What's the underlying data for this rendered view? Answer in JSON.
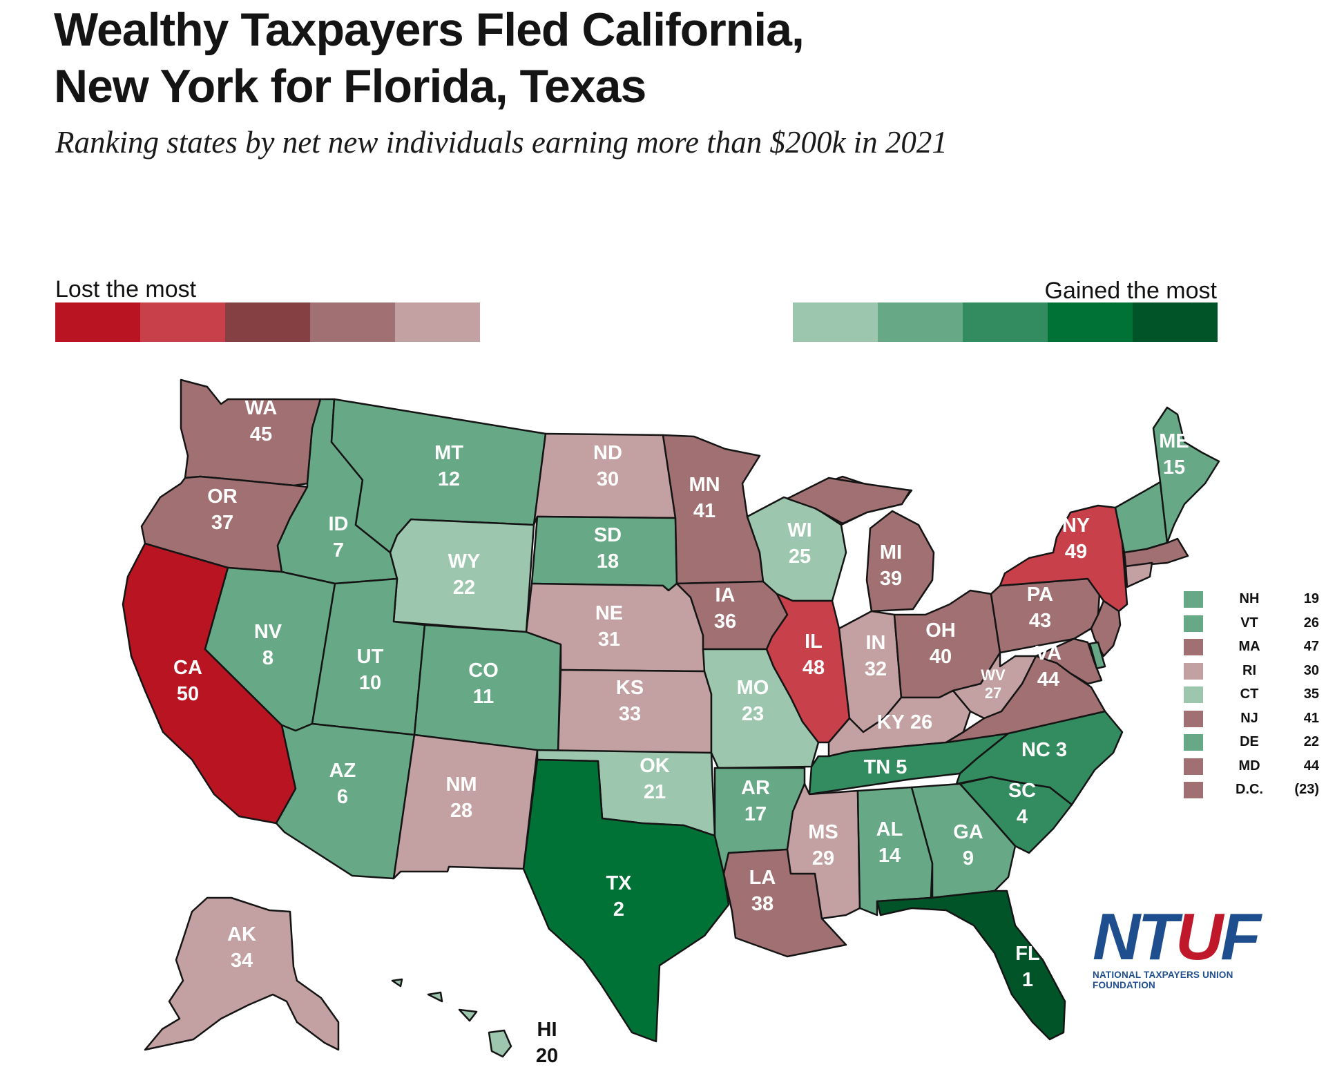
{
  "title_lines": [
    "Wealthy Taxpayers Fled California,",
    "New York for Florida, Texas"
  ],
  "subtitle": "Ranking states by net new individuals earning more than $200k in 2021",
  "legend": {
    "lost_label": "Lost the most",
    "gained_label": "Gained the most",
    "lost_colors": [
      "#b81422",
      "#c8404a",
      "#844042",
      "#a07072",
      "#c3a0a2"
    ],
    "gained_colors": [
      "#9cc7ae",
      "#67a886",
      "#338c60",
      "#007236",
      "#005428"
    ]
  },
  "map_colors": {
    "background": "#ffffff",
    "border": "#141414",
    "lost_1": "#b81422",
    "lost_2": "#c8404a",
    "lost_4": "#a07072",
    "lost_5": "#c3a0a2",
    "gain_1": "#9cc7ae",
    "gain_2": "#67a886",
    "gain_3": "#338c60",
    "gain_4": "#007236",
    "gain_5": "#005428"
  },
  "states": [
    {
      "abbr": "WA",
      "rank": "45"
    },
    {
      "abbr": "OR",
      "rank": "37"
    },
    {
      "abbr": "CA",
      "rank": "50"
    },
    {
      "abbr": "ID",
      "rank": "7"
    },
    {
      "abbr": "NV",
      "rank": "8"
    },
    {
      "abbr": "MT",
      "rank": "12"
    },
    {
      "abbr": "WY",
      "rank": "22"
    },
    {
      "abbr": "UT",
      "rank": "10"
    },
    {
      "abbr": "CO",
      "rank": "11"
    },
    {
      "abbr": "AZ",
      "rank": "6"
    },
    {
      "abbr": "NM",
      "rank": "28"
    },
    {
      "abbr": "ND",
      "rank": "30"
    },
    {
      "abbr": "SD",
      "rank": "18"
    },
    {
      "abbr": "NE",
      "rank": "31"
    },
    {
      "abbr": "KS",
      "rank": "33"
    },
    {
      "abbr": "OK",
      "rank": "21"
    },
    {
      "abbr": "TX",
      "rank": "2"
    },
    {
      "abbr": "MN",
      "rank": "41"
    },
    {
      "abbr": "IA",
      "rank": "36"
    },
    {
      "abbr": "MO",
      "rank": "23"
    },
    {
      "abbr": "AR",
      "rank": "17"
    },
    {
      "abbr": "LA",
      "rank": "38"
    },
    {
      "abbr": "WI",
      "rank": "25"
    },
    {
      "abbr": "IL",
      "rank": "48"
    },
    {
      "abbr": "MI",
      "rank": "39"
    },
    {
      "abbr": "IN",
      "rank": "32"
    },
    {
      "abbr": "OH",
      "rank": "40"
    },
    {
      "abbr": "KY",
      "rank": "26"
    },
    {
      "abbr": "TN",
      "rank": "5"
    },
    {
      "abbr": "MS",
      "rank": "29"
    },
    {
      "abbr": "AL",
      "rank": "14"
    },
    {
      "abbr": "GA",
      "rank": "9"
    },
    {
      "abbr": "FL",
      "rank": "1"
    },
    {
      "abbr": "SC",
      "rank": "4"
    },
    {
      "abbr": "NC",
      "rank": "3"
    },
    {
      "abbr": "VA",
      "rank": "44"
    },
    {
      "abbr": "WV",
      "rank": "27"
    },
    {
      "abbr": "PA",
      "rank": "43"
    },
    {
      "abbr": "NY",
      "rank": "49"
    },
    {
      "abbr": "ME",
      "rank": "15"
    },
    {
      "abbr": "AK",
      "rank": "34"
    },
    {
      "abbr": "HI",
      "rank": "20"
    }
  ],
  "small_states_table": [
    {
      "abbr": "NH",
      "rank": "19",
      "color": "#67a886"
    },
    {
      "abbr": "VT",
      "rank": "26",
      "color": "#67a886"
    },
    {
      "abbr": "MA",
      "rank": "47",
      "color": "#a07072"
    },
    {
      "abbr": "RI",
      "rank": "30",
      "color": "#c3a0a2"
    },
    {
      "abbr": "CT",
      "rank": "35",
      "color": "#9cc7ae"
    },
    {
      "abbr": "NJ",
      "rank": "41",
      "color": "#a07072"
    },
    {
      "abbr": "DE",
      "rank": "22",
      "color": "#67a886"
    },
    {
      "abbr": "MD",
      "rank": "44",
      "color": "#a07072"
    },
    {
      "abbr": "D.C.",
      "rank": "(23)",
      "color": "#a07072"
    }
  ],
  "logo": {
    "mark_left": "NT",
    "mark_star": "U",
    "mark_right": "F",
    "name": "NATIONAL TAXPAYERS UNION FOUNDATION"
  }
}
